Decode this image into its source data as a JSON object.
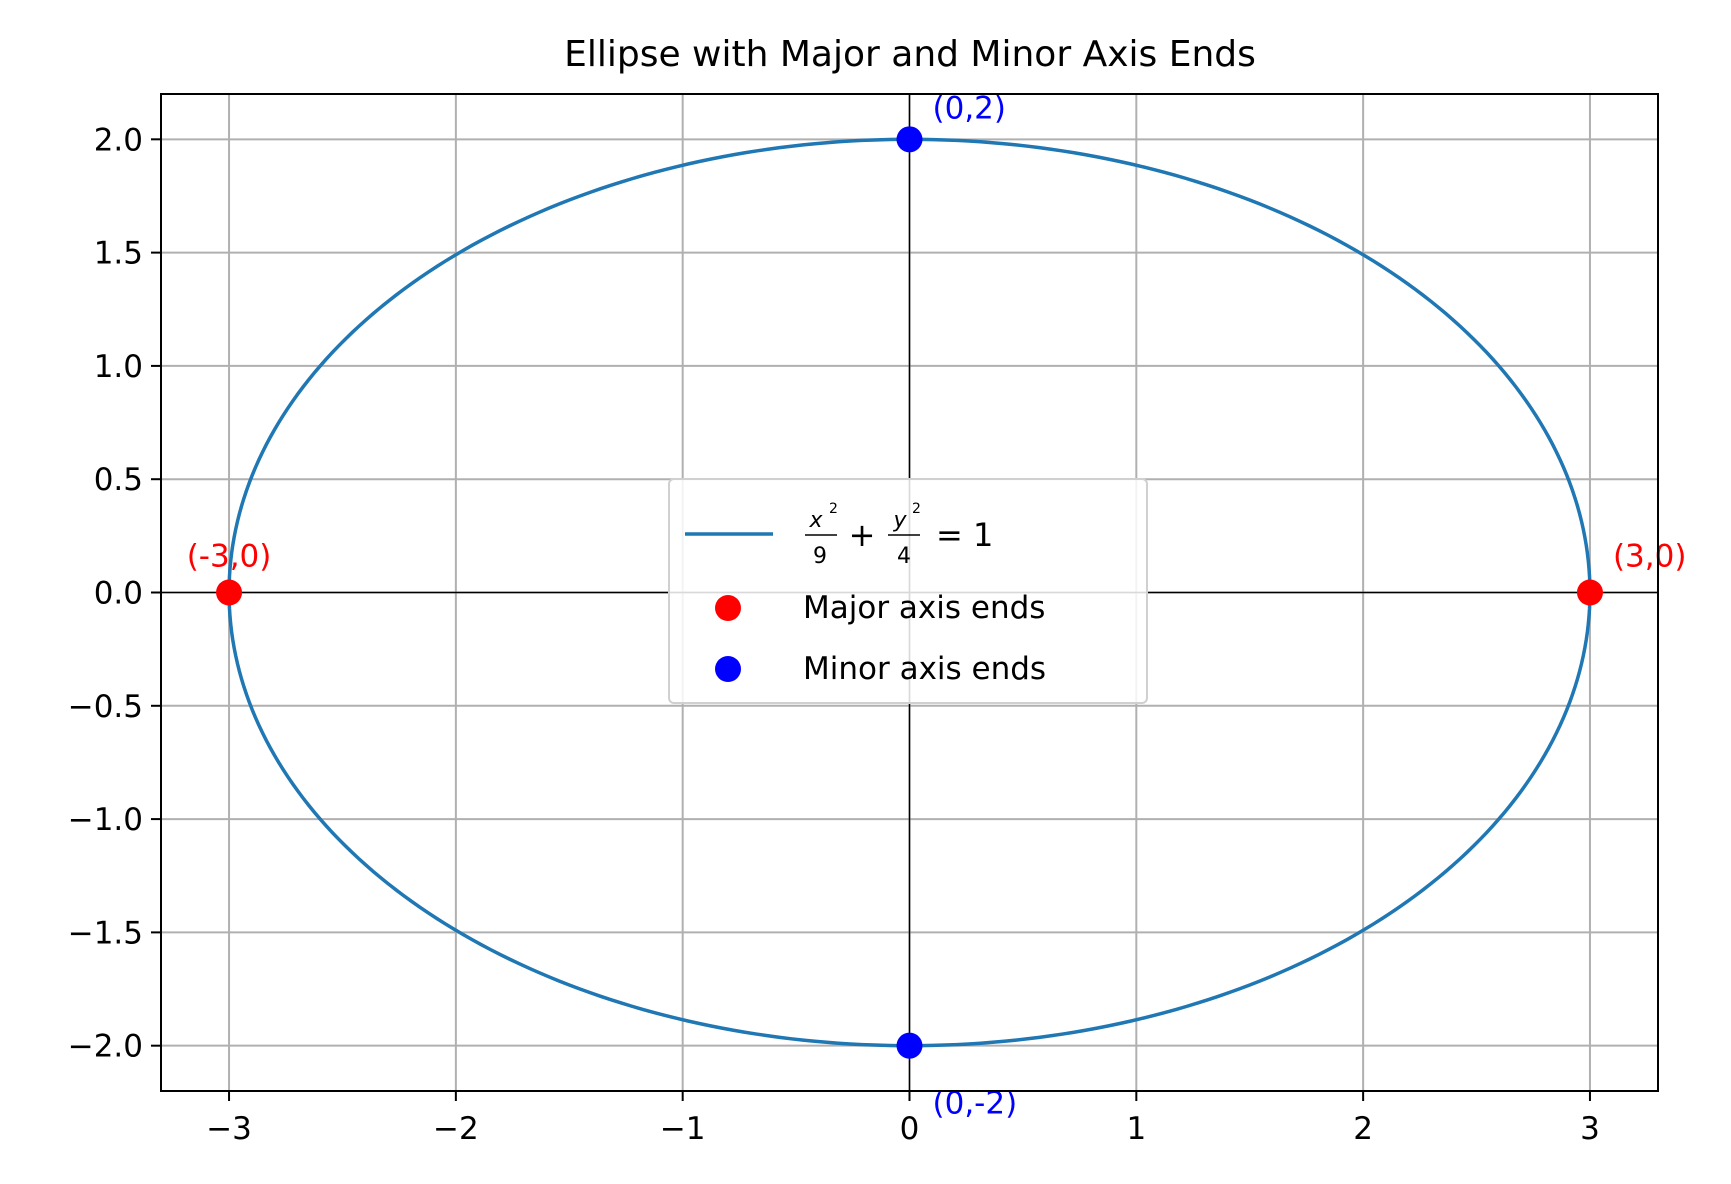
{
  "chart_data": {
    "type": "line",
    "title": "Ellipse with Major and Minor Axis Ends",
    "xlabel": "",
    "ylabel": "",
    "xlim": [
      -3.3,
      3.3
    ],
    "ylim": [
      -2.2,
      2.2
    ],
    "xticks": [
      -3,
      -2,
      -1,
      0,
      1,
      2,
      3
    ],
    "xtick_labels": [
      "−3",
      "−2",
      "−1",
      "0",
      "1",
      "2",
      "3"
    ],
    "yticks": [
      2.0,
      1.5,
      1.0,
      0.5,
      0.0,
      -0.5,
      -1.0,
      -1.5,
      -2.0
    ],
    "ytick_labels": [
      "2.0",
      "1.5",
      "1.0",
      "0.5",
      "0.0",
      "−0.5",
      "−1.0",
      "−1.5",
      "−2.0"
    ],
    "grid": true,
    "ellipse": {
      "a": 3,
      "b": 2,
      "color": "#1f77b4"
    },
    "legend_placement": "center",
    "legend": {
      "equation": {
        "x_num": "x",
        "x_den": "9",
        "y_num": "y",
        "y_den": "4",
        "plus": "+",
        "rhs": "= 1"
      },
      "major_label": "Major axis ends",
      "minor_label": "Minor axis ends"
    },
    "points": [
      {
        "x": -3,
        "y": 0,
        "label": "(-3,0)",
        "group": "major"
      },
      {
        "x": 3,
        "y": 0,
        "label": "(3,0)",
        "group": "major"
      },
      {
        "x": 0,
        "y": 2,
        "label": "(0,2)",
        "group": "minor"
      },
      {
        "x": 0,
        "y": -2,
        "label": "(0,-2)",
        "group": "minor"
      }
    ],
    "colors": {
      "major": "#ff0000",
      "minor": "#0000ff",
      "grid": "#b0b0b0",
      "axis": "#000000"
    }
  }
}
